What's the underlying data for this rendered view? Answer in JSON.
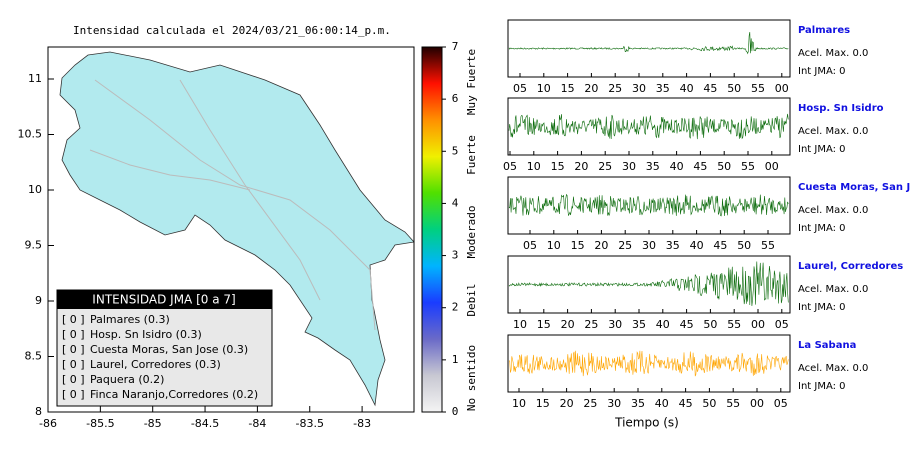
{
  "map": {
    "title": "Intensidad calculada el 2024/03/21_06:00:14_p.m.",
    "xticks": [
      -86,
      -85.5,
      -85,
      -84.5,
      -84,
      -83.5,
      -83
    ],
    "yticks": [
      11,
      10.5,
      10,
      9.5,
      9,
      8.5,
      8
    ]
  },
  "colorbar": {
    "ticks": [
      0,
      1,
      2,
      3,
      4,
      5,
      6,
      7
    ],
    "levels": [
      "Muy Fuerte",
      "Fuerte",
      "Moderado",
      "Debil",
      "No sentido"
    ]
  },
  "legend": {
    "title": "INTENSIDAD JMA [0 a 7]",
    "rows": [
      {
        "intensity": "[ 0 ]",
        "station": "Palmares (0.3)"
      },
      {
        "intensity": "[ 0 ]",
        "station": "Hosp. Sn Isidro (0.3)"
      },
      {
        "intensity": "[ 0 ]",
        "station": "Cuesta Moras, San Jose (0.3)"
      },
      {
        "intensity": "[ 0 ]",
        "station": "Laurel, Corredores (0.3)"
      },
      {
        "intensity": "[ 0 ]",
        "station": "Paquera (0.2)"
      },
      {
        "intensity": "[ 0 ]",
        "station": "Finca Naranjo,Corredores (0.2)"
      }
    ]
  },
  "stations": [
    {
      "name": "Palmares",
      "acceleration": "Acel. Max. 0.0",
      "intensity": "Int JMA: 0",
      "color": "#0b6b0b",
      "ticks": [
        "05",
        "10",
        "15",
        "20",
        "25",
        "30",
        "35",
        "40",
        "45",
        "50",
        "55",
        "00"
      ]
    },
    {
      "name": "Hosp. Sn Isidro",
      "acceleration": "Acel. Max. 0.0",
      "intensity": "Int JMA: 0",
      "color": "#0b6b0b",
      "ticks": [
        "05",
        "10",
        "15",
        "20",
        "25",
        "30",
        "35",
        "40",
        "45",
        "50",
        "55",
        "00"
      ]
    },
    {
      "name": "Cuesta Moras, San Jose",
      "acceleration": "Acel. Max. 0.0",
      "intensity": "Int JMA: 0",
      "color": "#0b6b0b",
      "ticks": [
        "05",
        "10",
        "15",
        "20",
        "25",
        "30",
        "35",
        "40",
        "45",
        "50",
        "55"
      ]
    },
    {
      "name": "Laurel, Corredores",
      "acceleration": "Acel. Max. 0.0",
      "intensity": "Int JMA: 0",
      "color": "#0b6b0b",
      "ticks": [
        "10",
        "15",
        "20",
        "25",
        "30",
        "35",
        "40",
        "45",
        "50",
        "55",
        "00",
        "05"
      ]
    },
    {
      "name": "La Sabana",
      "acceleration": "Acel. Max. 0.0",
      "intensity": "Int JMA: 0",
      "color": "#ffa500",
      "ticks": [
        "10",
        "15",
        "20",
        "25",
        "30",
        "35",
        "40",
        "45",
        "50",
        "55",
        "00",
        "05"
      ]
    }
  ],
  "x_axis_label": "Tiempo (s)"
}
